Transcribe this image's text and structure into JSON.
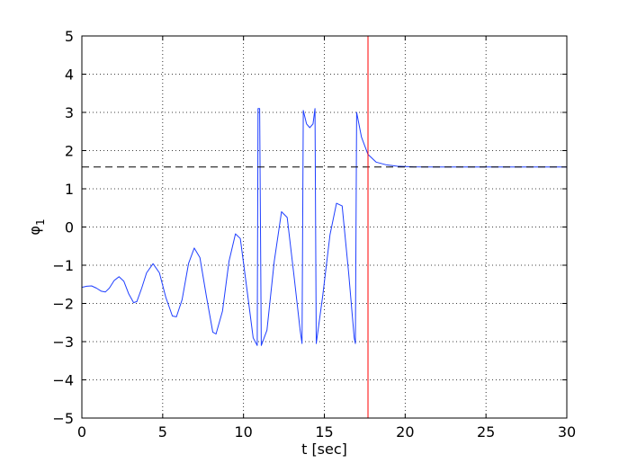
{
  "chart_data": {
    "type": "line",
    "title": "",
    "xlabel": "t [sec]",
    "ylabel_main": "φ",
    "ylabel_sub": "1",
    "xlim": [
      0,
      30
    ],
    "ylim": [
      -5,
      5
    ],
    "x_ticks": [
      0,
      5,
      10,
      15,
      20,
      25,
      30
    ],
    "y_ticks": [
      -5,
      -4,
      -3,
      -2,
      -1,
      0,
      1,
      2,
      3,
      4,
      5
    ],
    "x_tick_labels": [
      "0",
      "5",
      "10",
      "15",
      "20",
      "25",
      "30"
    ],
    "y_tick_labels": [
      "−5",
      "−4",
      "−3",
      "−2",
      "−1",
      "0",
      "1",
      "2",
      "3",
      "4",
      "5"
    ],
    "grid": true,
    "grid_style": "dotted",
    "series": [
      {
        "style": "solid",
        "color": "#1f3fff",
        "points": [
          [
            0.0,
            -1.58
          ],
          [
            0.3,
            -1.55
          ],
          [
            0.6,
            -1.54
          ],
          [
            0.9,
            -1.6
          ],
          [
            1.2,
            -1.68
          ],
          [
            1.45,
            -1.7
          ],
          [
            1.7,
            -1.6
          ],
          [
            2.0,
            -1.4
          ],
          [
            2.3,
            -1.3
          ],
          [
            2.6,
            -1.42
          ],
          [
            2.9,
            -1.75
          ],
          [
            3.2,
            -1.98
          ],
          [
            3.4,
            -1.95
          ],
          [
            3.7,
            -1.6
          ],
          [
            4.0,
            -1.2
          ],
          [
            4.4,
            -0.96
          ],
          [
            4.8,
            -1.2
          ],
          [
            5.2,
            -1.85
          ],
          [
            5.6,
            -2.33
          ],
          [
            5.85,
            -2.35
          ],
          [
            6.2,
            -1.9
          ],
          [
            6.6,
            -0.95
          ],
          [
            6.95,
            -0.55
          ],
          [
            7.3,
            -0.8
          ],
          [
            7.7,
            -1.8
          ],
          [
            8.1,
            -2.75
          ],
          [
            8.3,
            -2.8
          ],
          [
            8.7,
            -2.2
          ],
          [
            9.1,
            -0.9
          ],
          [
            9.5,
            -0.18
          ],
          [
            9.8,
            -0.3
          ],
          [
            10.2,
            -1.6
          ],
          [
            10.6,
            -2.9
          ],
          [
            10.85,
            -3.1
          ],
          [
            10.9,
            3.1
          ],
          [
            11.0,
            3.1
          ],
          [
            11.1,
            -3.1
          ],
          [
            11.45,
            -2.7
          ],
          [
            11.9,
            -0.9
          ],
          [
            12.35,
            0.4
          ],
          [
            12.7,
            0.25
          ],
          [
            13.1,
            -1.2
          ],
          [
            13.5,
            -2.7
          ],
          [
            13.62,
            -3.05
          ],
          [
            13.7,
            3.05
          ],
          [
            13.9,
            2.7
          ],
          [
            14.1,
            2.6
          ],
          [
            14.3,
            2.7
          ],
          [
            14.42,
            3.1
          ],
          [
            14.5,
            -3.05
          ],
          [
            14.9,
            -1.8
          ],
          [
            15.35,
            -0.2
          ],
          [
            15.75,
            0.62
          ],
          [
            16.1,
            0.55
          ],
          [
            16.5,
            -1.2
          ],
          [
            16.85,
            -2.9
          ],
          [
            16.92,
            -3.05
          ],
          [
            17.0,
            3.0
          ],
          [
            17.3,
            2.35
          ],
          [
            17.7,
            1.9
          ],
          [
            18.2,
            1.7
          ],
          [
            18.8,
            1.63
          ],
          [
            19.5,
            1.59
          ],
          [
            20.5,
            1.575
          ],
          [
            22.0,
            1.571
          ],
          [
            30.0,
            1.5708
          ]
        ]
      },
      {
        "style": "dashed",
        "color": "#000000",
        "points": [
          [
            0,
            1.5708
          ],
          [
            30,
            1.5708
          ]
        ]
      }
    ],
    "vertical_marker": {
      "x": 17.7,
      "color": "#ff0000"
    }
  }
}
